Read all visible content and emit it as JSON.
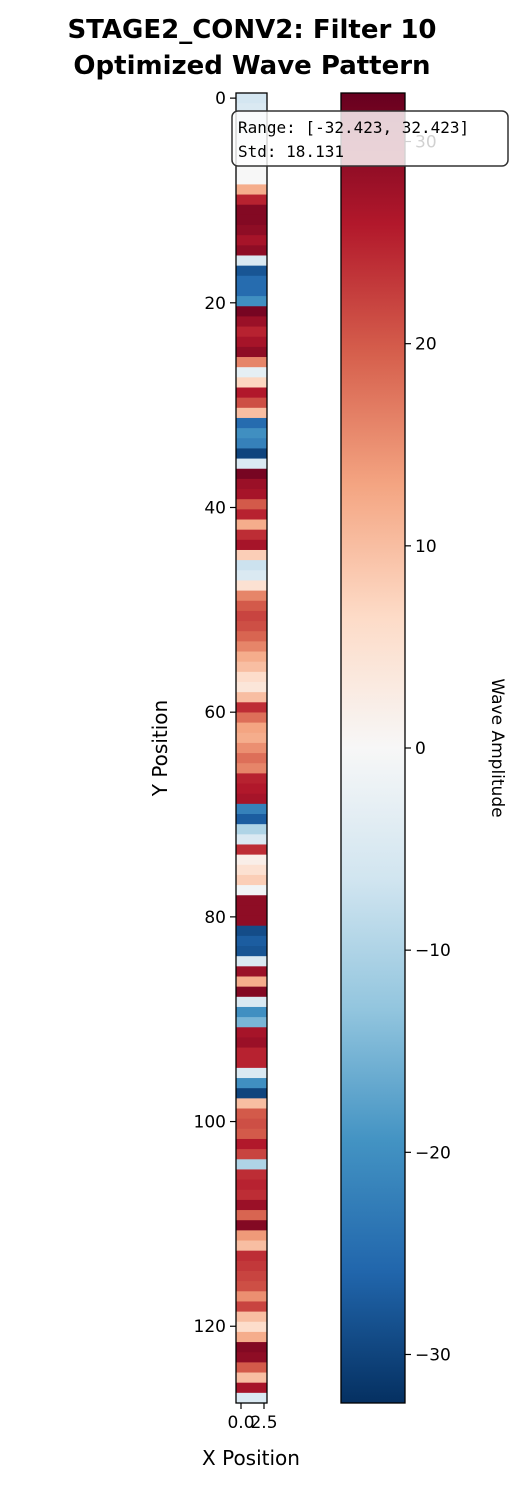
{
  "chart_data": {
    "type": "heatmap",
    "title": "STAGE2_CONV2: Filter 10",
    "subtitle": "Optimized Wave Pattern",
    "xlabel": "X Position",
    "ylabel": "Y Position",
    "x_ticks": [
      "0.0",
      "2.5"
    ],
    "y_ticks": [
      0,
      20,
      40,
      60,
      80,
      100,
      120
    ],
    "y_range": [
      0,
      127
    ],
    "colorbar": {
      "label": "Wave Amplitude",
      "range": [
        -32.4,
        32.4
      ],
      "ticks": [
        -30,
        -20,
        -10,
        0,
        10,
        20,
        30
      ],
      "colormap": "RdBu_r"
    },
    "annotation": {
      "line1": "Range: [-32.423, 32.423]",
      "line2": "Std: 18.131"
    },
    "rows": [
      -6,
      -5,
      -5,
      -4,
      -3,
      -2,
      -1,
      0,
      0,
      12,
      25,
      30,
      30,
      29,
      27,
      29,
      -5,
      -28,
      -25,
      -25,
      -20,
      31,
      28,
      25,
      27,
      29,
      16,
      -3,
      7,
      26,
      21,
      10,
      -25,
      -20,
      -22,
      -30,
      -5,
      31,
      28,
      27,
      20,
      25,
      12,
      24,
      27,
      8,
      -7,
      -5,
      5,
      16,
      20,
      22,
      21,
      19,
      16,
      12,
      10,
      6,
      4,
      10,
      24,
      18,
      13,
      12,
      15,
      18,
      16,
      25,
      26,
      27,
      -22,
      -27,
      -10,
      -5,
      24,
      2,
      5,
      8,
      -1,
      29,
      29,
      29,
      -29,
      -27,
      -28,
      -5,
      28,
      12,
      30,
      -5,
      -20,
      -15,
      27,
      28,
      25,
      25,
      -5,
      -20,
      -30,
      10,
      20,
      21,
      20,
      26,
      22,
      -10,
      24,
      25,
      24,
      28,
      19,
      30,
      14,
      10,
      24,
      23,
      22,
      21,
      15,
      22,
      10,
      6,
      12,
      30,
      29,
      20,
      10,
      27,
      -5
    ]
  }
}
